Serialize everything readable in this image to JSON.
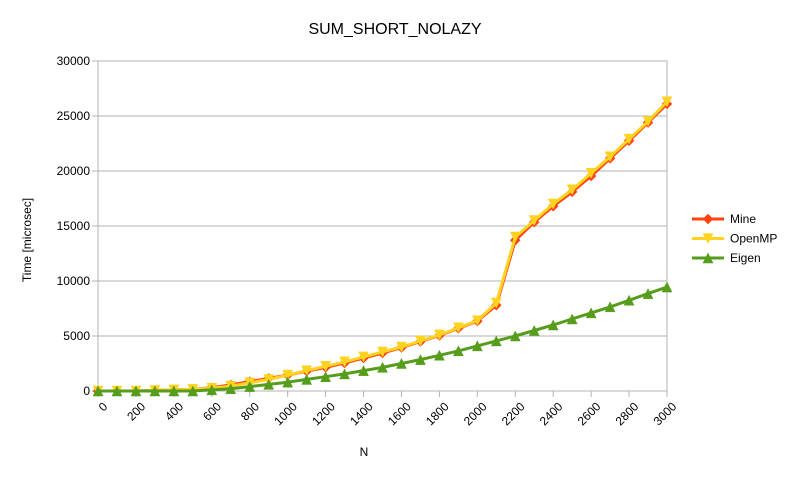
{
  "chart_data": {
    "type": "line",
    "title": "SUM_SHORT_NOLAZY",
    "xlabel": "N",
    "ylabel": "Time [microsec]",
    "xlim": [
      0,
      3000
    ],
    "ylim": [
      0,
      30000
    ],
    "x_ticks": [
      "0",
      "200",
      "400",
      "600",
      "800",
      "1000",
      "1200",
      "1400",
      "1600",
      "1800",
      "2000",
      "2200",
      "2400",
      "2600",
      "2800",
      "3000"
    ],
    "y_ticks": [
      "0",
      "5000",
      "10000",
      "15000",
      "20000",
      "25000",
      "30000"
    ],
    "grid": "horizontal",
    "legend_position": "right",
    "x": [
      0,
      100,
      200,
      300,
      400,
      500,
      600,
      700,
      800,
      900,
      1000,
      1100,
      1200,
      1300,
      1400,
      1500,
      1600,
      1700,
      1800,
      1900,
      2000,
      2100,
      2200,
      2300,
      2400,
      2500,
      2600,
      2700,
      2800,
      2900,
      3000
    ],
    "series": [
      {
        "name": "Mine",
        "color": "#ff420e",
        "marker": "diamond",
        "values": [
          0,
          0,
          0,
          50,
          100,
          150,
          300,
          550,
          850,
          1150,
          1450,
          1800,
          2150,
          2550,
          3000,
          3450,
          3950,
          4500,
          5050,
          5700,
          6350,
          7800,
          13700,
          15350,
          16800,
          18100,
          19550,
          21150,
          22750,
          24400,
          26100
        ]
      },
      {
        "name": "OpenMP",
        "color": "#ffd320",
        "marker": "triangle-down",
        "values": [
          0,
          0,
          0,
          50,
          100,
          150,
          250,
          450,
          750,
          1050,
          1450,
          1850,
          2250,
          2650,
          3100,
          3550,
          4000,
          4550,
          5100,
          5750,
          6400,
          8000,
          14000,
          15500,
          17000,
          18300,
          19800,
          21300,
          22900,
          24500,
          26300
        ]
      },
      {
        "name": "Eigen",
        "color": "#579d1c",
        "marker": "triangle-up",
        "values": [
          0,
          0,
          0,
          0,
          0,
          0,
          100,
          200,
          400,
          600,
          800,
          1050,
          1300,
          1550,
          1850,
          2150,
          2500,
          2850,
          3250,
          3650,
          4100,
          4550,
          5000,
          5500,
          6000,
          6550,
          7100,
          7650,
          8250,
          8850,
          9450
        ]
      }
    ]
  }
}
